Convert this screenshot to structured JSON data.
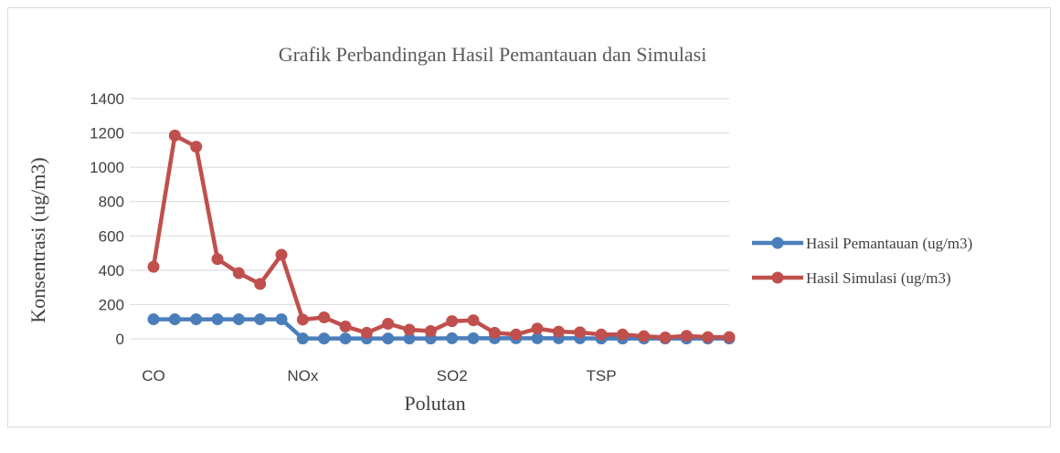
{
  "chart_data": {
    "type": "line",
    "title": "Grafik Perbandingan Hasil Pemantauan dan Simulasi",
    "xlabel": "Polutan",
    "ylabel": "Konsentrasi (ug/m3)",
    "ylim": [
      0,
      1400
    ],
    "yticks": [
      0,
      200,
      400,
      600,
      800,
      1000,
      1200,
      1400
    ],
    "grid": true,
    "legend_position": "right",
    "x_tick_labels": [
      {
        "index": 0,
        "label": "CO"
      },
      {
        "index": 7,
        "label": "NOx"
      },
      {
        "index": 14,
        "label": "SO2"
      },
      {
        "index": 21,
        "label": "TSP"
      }
    ],
    "point_count": 28,
    "series": [
      {
        "name": "Hasil Pemantauan (ug/m3)",
        "color": "#4a7ebb",
        "values": [
          114,
          114,
          114,
          114,
          114,
          114,
          114,
          2,
          2,
          2,
          2,
          2,
          2,
          2,
          3,
          3,
          3,
          3,
          3,
          3,
          3,
          2,
          2,
          2,
          2,
          2,
          2,
          2
        ]
      },
      {
        "name": "Hasil Simulasi (ug/m3)",
        "color": "#c0504d",
        "values": [
          420,
          1185,
          1120,
          465,
          383,
          320,
          490,
          112,
          125,
          72,
          35,
          88,
          53,
          45,
          103,
          108,
          35,
          25,
          60,
          42,
          38,
          25,
          25,
          15,
          8,
          17,
          10,
          10
        ]
      }
    ]
  }
}
